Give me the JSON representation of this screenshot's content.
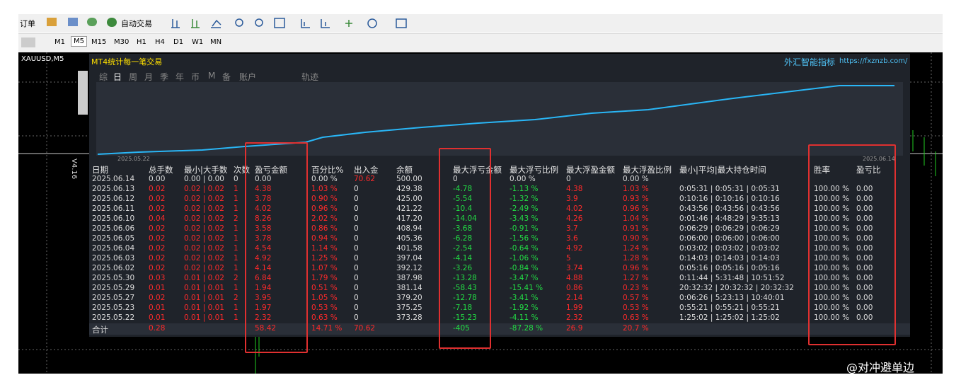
{
  "toolbar": {
    "order_button": "订单",
    "auto_trade": "自动交易",
    "timeframes": [
      "M1",
      "M5",
      "M15",
      "M30",
      "H1",
      "H4",
      "D1",
      "W1",
      "MN"
    ]
  },
  "chart_tab": "XAUUSD,M5",
  "panel": {
    "title": "MT4统计每一笔交易",
    "brand": "外汇智能指标",
    "url": "https://fxznzb.com/",
    "version": "V4.16",
    "tabs": [
      "综",
      "日",
      "周",
      "月",
      "季",
      "年",
      "币",
      "M",
      "备",
      "账户",
      "轨迹"
    ],
    "curve_start_date": "2025.05.22",
    "curve_end_date": "2025.06.14"
  },
  "table": {
    "headers": [
      "日期",
      "总手数",
      "最小|大手数",
      "次数",
      "盈亏金额",
      "百分比%",
      "出入金",
      "余额",
      "最大浮亏金额",
      "最大浮亏比例",
      "最大浮盈金额",
      "最大浮盈比例",
      "最小|平均|最大持仓时间",
      "胜率",
      "盈亏比"
    ],
    "rows": [
      [
        "2025.06.14",
        "0.00",
        "0.00 | 0.00",
        "0",
        "0.00",
        "0.00 %",
        "70.62",
        "500.00",
        "0",
        "0.00 %",
        "0",
        "0.00 %",
        null,
        null,
        null
      ],
      [
        "2025.06.13",
        "0.02",
        "0.02 | 0.02",
        "1",
        "4.38",
        "1.03 %",
        "0",
        "429.38",
        "-4.78",
        "-1.13 %",
        "4.38",
        "1.03 %",
        "0:05:31 | 0:05:31 | 0:05:31",
        "100.00 %",
        "0.00"
      ],
      [
        "2025.06.12",
        "0.02",
        "0.02 | 0.02",
        "1",
        "3.78",
        "0.90 %",
        "0",
        "425.00",
        "-5.54",
        "-1.32 %",
        "3.9",
        "0.93 %",
        "0:10:16 | 0:10:16 | 0:10:16",
        "100.00 %",
        "0.00"
      ],
      [
        "2025.06.11",
        "0.02",
        "0.02 | 0.02",
        "1",
        "4.02",
        "0.96 %",
        "0",
        "421.22",
        "-10.4",
        "-2.49 %",
        "4.02",
        "0.96 %",
        "0:43:56 | 0:43:56 | 0:43:56",
        "100.00 %",
        "0.00"
      ],
      [
        "2025.06.10",
        "0.04",
        "0.02 | 0.02",
        "2",
        "8.26",
        "2.02 %",
        "0",
        "417.20",
        "-14.04",
        "-3.43 %",
        "4.26",
        "1.04 %",
        "0:01:46 | 4:48:29 | 9:35:13",
        "100.00 %",
        "0.00"
      ],
      [
        "2025.06.06",
        "0.02",
        "0.02 | 0.02",
        "1",
        "3.58",
        "0.86 %",
        "0",
        "408.94",
        "-3.68",
        "-0.91 %",
        "3.7",
        "0.91 %",
        "0:06:29 | 0:06:29 | 0:06:29",
        "100.00 %",
        "0.00"
      ],
      [
        "2025.06.05",
        "0.02",
        "0.02 | 0.02",
        "1",
        "3.78",
        "0.94 %",
        "0",
        "405.36",
        "-6.28",
        "-1.56 %",
        "3.6",
        "0.90 %",
        "0:06:00 | 0:06:00 | 0:06:00",
        "100.00 %",
        "0.00"
      ],
      [
        "2025.06.04",
        "0.02",
        "0.02 | 0.02",
        "1",
        "4.54",
        "1.14 %",
        "0",
        "401.58",
        "-2.54",
        "-0.64 %",
        "4.92",
        "1.24 %",
        "0:03:02 | 0:03:02 | 0:03:02",
        "100.00 %",
        "0.00"
      ],
      [
        "2025.06.03",
        "0.02",
        "0.02 | 0.02",
        "1",
        "4.92",
        "1.25 %",
        "0",
        "397.04",
        "-4.14",
        "-1.06 %",
        "5",
        "1.28 %",
        "0:14:03 | 0:14:03 | 0:14:03",
        "100.00 %",
        "0.00"
      ],
      [
        "2025.06.02",
        "0.02",
        "0.02 | 0.02",
        "1",
        "4.14",
        "1.07 %",
        "0",
        "392.12",
        "-3.26",
        "-0.84 %",
        "3.74",
        "0.96 %",
        "0:05:16 | 0:05:16 | 0:05:16",
        "100.00 %",
        "0.00"
      ],
      [
        "2025.05.30",
        "0.03",
        "0.01 | 0.02",
        "2",
        "6.84",
        "1.79 %",
        "0",
        "387.98",
        "-13.28",
        "-3.47 %",
        "4.88",
        "1.27 %",
        "0:11:44 | 5:31:48 | 10:51:52",
        "100.00 %",
        "0.00"
      ],
      [
        "2025.05.29",
        "0.01",
        "0.01 | 0.01",
        "1",
        "1.94",
        "0.51 %",
        "0",
        "381.14",
        "-58.43",
        "-15.41 %",
        "0.86",
        "0.23 %",
        "20:32:32 | 20:32:32 | 20:32:32",
        "100.00 %",
        "0.00"
      ],
      [
        "2025.05.27",
        "0.02",
        "0.01 | 0.01",
        "2",
        "3.95",
        "1.05 %",
        "0",
        "379.20",
        "-12.78",
        "-3.41 %",
        "2.14",
        "0.57 %",
        "0:06:26 | 5:23:13 | 10:40:01",
        "100.00 %",
        "0.00"
      ],
      [
        "2025.05.23",
        "0.01",
        "0.01 | 0.01",
        "1",
        "1.97",
        "0.53 %",
        "0",
        "375.25",
        "-7.18",
        "-1.92 %",
        "1.99",
        "0.53 %",
        "0:55:21 | 0:55:21 | 0:55:21",
        "100.00 %",
        "0.00"
      ],
      [
        "2025.05.22",
        "0.01",
        "0.01 | 0.01",
        "1",
        "2.32",
        "0.63 %",
        "0",
        "373.28",
        "-15.23",
        "-4.11 %",
        "2.32",
        "0.63 %",
        "1:25:02 | 1:25:02 | 1:25:02",
        "100.00 %",
        "0.00"
      ]
    ],
    "total": [
      "合计",
      "0.28",
      null,
      null,
      "58.42",
      "14.71 %",
      "70.62",
      null,
      "-405",
      "-87.28 %",
      "26.9",
      "20.7 %",
      null,
      null,
      null
    ]
  },
  "watermark": "@对冲避单边"
}
